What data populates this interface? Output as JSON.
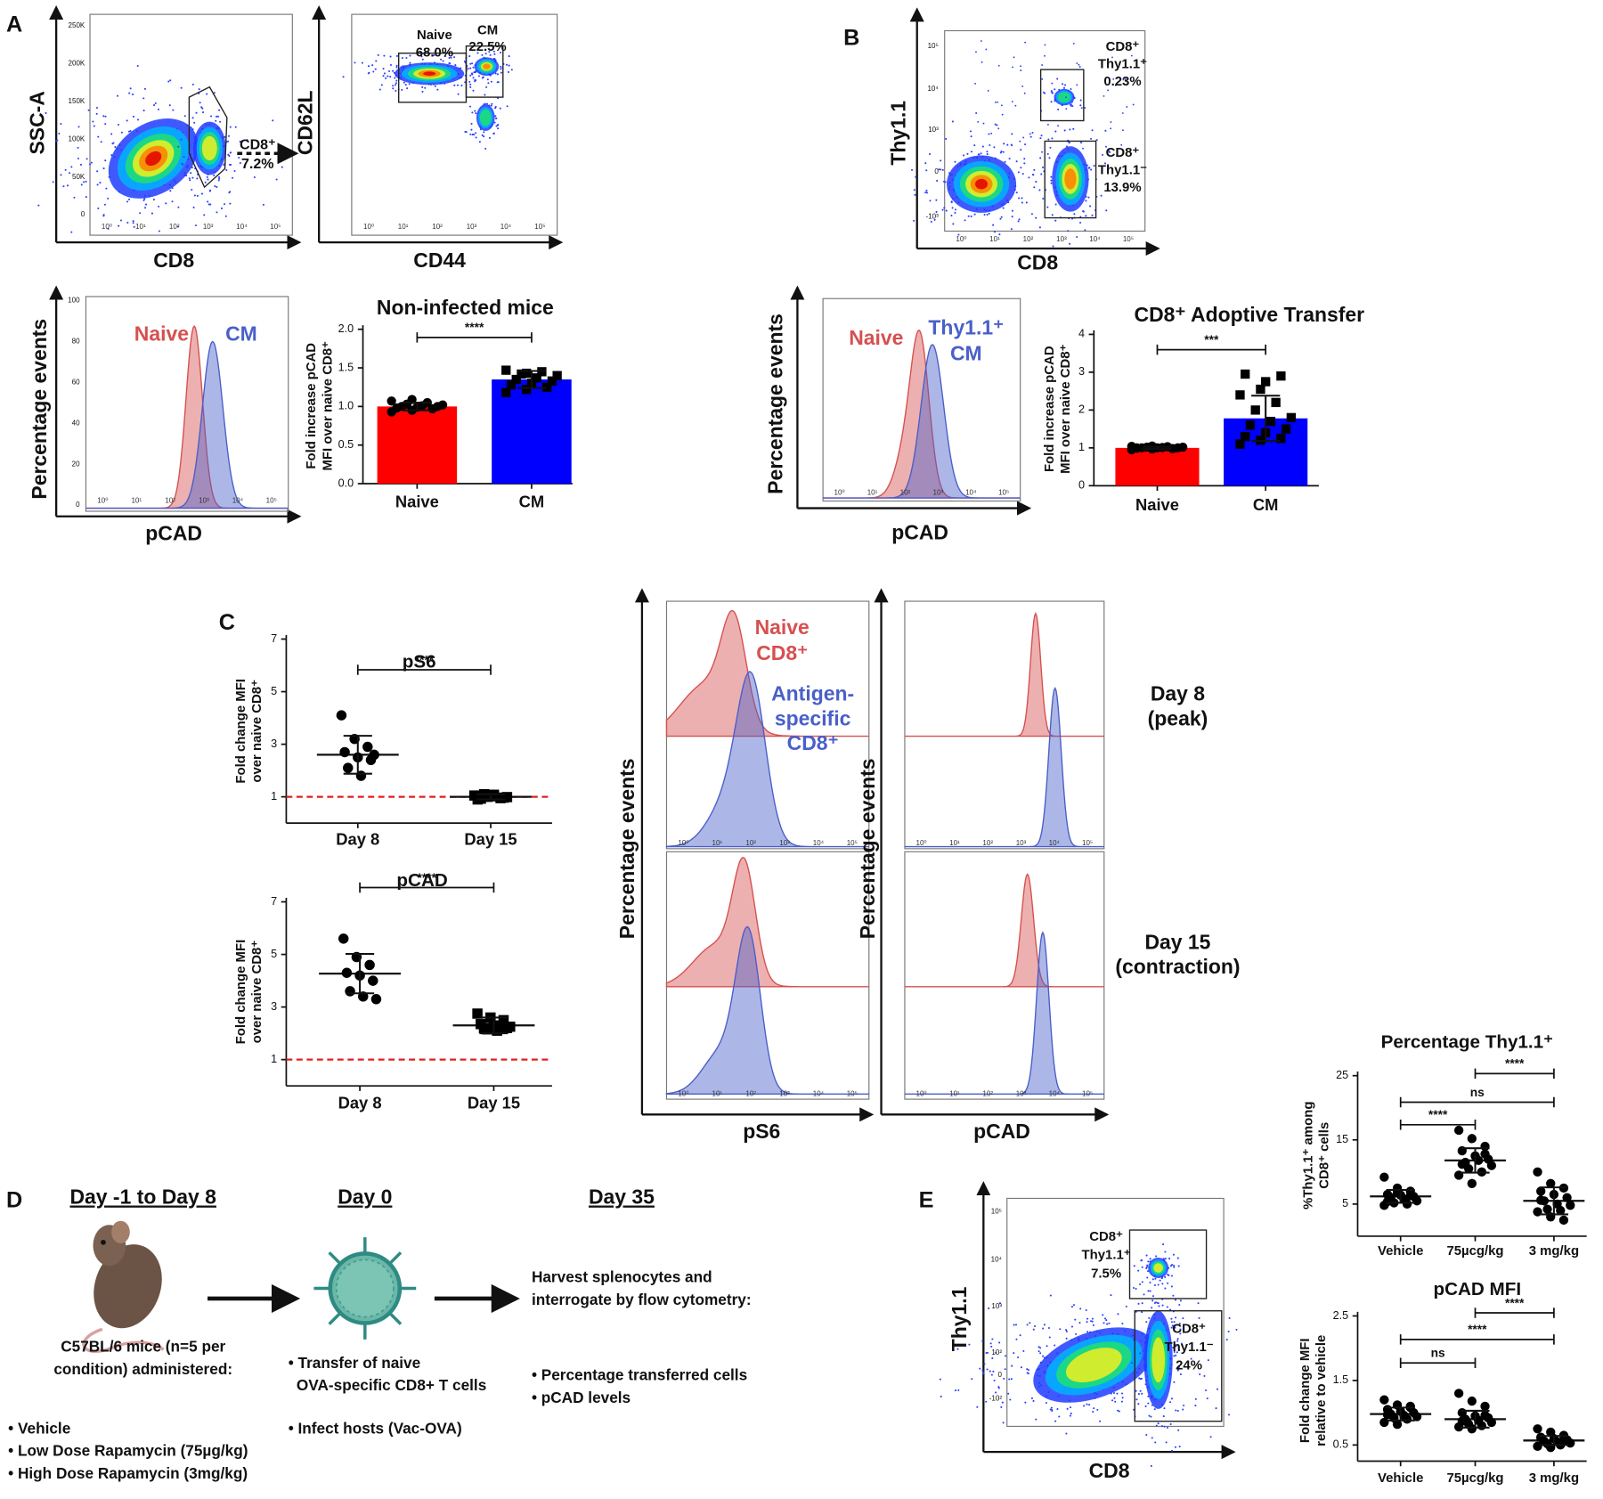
{
  "panel_labels": [
    "A",
    "B",
    "C",
    "D",
    "E"
  ],
  "log_ticks": [
    "10⁰",
    "10¹",
    "10²",
    "10³",
    "10⁴",
    "10⁵"
  ],
  "panel_a": {
    "ssc_plot": {
      "y_label": "SSC-A",
      "x_label": "CD8",
      "y_ticks": [
        "250K",
        "200K",
        "150K",
        "100K",
        "50K",
        "0"
      ],
      "gate": [
        "CD8⁺",
        "7.2%"
      ]
    },
    "cd62l_plot": {
      "y_label": "CD62L",
      "x_label": "CD44",
      "gates": [
        [
          "Naive",
          "68.0%"
        ],
        [
          "CM",
          "22.5%"
        ]
      ]
    },
    "histogram": {
      "y_label": "Percentage events",
      "x_label": "pCAD",
      "y_ticks": [
        "100",
        "80",
        "60",
        "40",
        "20",
        "0"
      ],
      "legend": [
        "Naive",
        "CM"
      ]
    }
  },
  "panel_b": {
    "thy_plot": {
      "y_label": "Thy1.1",
      "x_label": "CD8",
      "y_ticks": [
        "10⁵",
        "10⁴",
        "10³",
        "0",
        "-10³"
      ],
      "gates": [
        [
          "CD8⁺",
          "Thy1.1⁺",
          "0.23%"
        ],
        [
          "CD8⁺",
          "Thy1.1⁻",
          "13.9%"
        ]
      ]
    },
    "histogram": {
      "y_label": "Percentage events",
      "x_label": "pCAD",
      "legend": [
        "Naive",
        "Thy1.1⁺",
        "CM"
      ]
    }
  },
  "panel_c": {
    "histograms": {
      "y_label": "Percentage events",
      "x_labels": [
        "pS6",
        "pCAD"
      ],
      "legend": [
        "Naive",
        "CD8⁺",
        "Antigen-",
        "specific",
        "CD8⁺"
      ],
      "rows": [
        [
          "Day 8",
          "(peak)"
        ],
        [
          "Day 15",
          "(contraction)"
        ]
      ]
    }
  },
  "panel_d": {
    "steps": [
      {
        "heading": "Day -1 to Day 8",
        "lines": [
          "C57BL/6 mice (n=5 per",
          "condition) administered:"
        ],
        "bullets": [
          "• Vehicle",
          "• Low Dose Rapamycin (75µg/kg)",
          "• High Dose Rapamycin (3mg/kg)"
        ]
      },
      {
        "heading": "Day 0",
        "lines": [
          "• Transfer of naive",
          "OVA-specific CD8+ T cells"
        ],
        "bullets": [
          "• Infect hosts (Vac-OVA)"
        ]
      },
      {
        "heading": "Day 35",
        "lines": [
          "Harvest splenocytes and",
          "interrogate by flow cytometry:"
        ],
        "bullets": [
          "• Percentage transferred cells",
          "• pCAD levels"
        ]
      }
    ]
  },
  "panel_e": {
    "flow_plot": {
      "y_label": "Thy1.1",
      "x_label": "CD8",
      "y_ticks": [
        "10⁵",
        "10⁴",
        "10³",
        "10²",
        "0",
        "-10²"
      ],
      "gates": [
        [
          "CD8⁺",
          "Thy1.1⁺",
          "7.5%"
        ],
        [
          "CD8⁺",
          "Thy1.1⁻",
          "24%"
        ]
      ]
    }
  },
  "chart_data": [
    {
      "type": "bar",
      "title": "Non-infected mice",
      "ylabel": [
        "Fold increase pCAD",
        "MFI over naive CD8⁺"
      ],
      "categories": [
        "Naive",
        "CM"
      ],
      "colors": [
        "#ff0000",
        "#0000ff"
      ],
      "markers": [
        "circle",
        "square"
      ],
      "values": [
        1.0,
        1.35
      ],
      "errors": [
        0.05,
        0.11
      ],
      "points": [
        [
          0.93,
          0.95,
          0.97,
          0.98,
          0.99,
          1.0,
          1.0,
          1.01,
          1.02,
          1.03,
          1.05,
          1.07,
          1.09
        ],
        [
          1.18,
          1.22,
          1.25,
          1.28,
          1.3,
          1.33,
          1.35,
          1.37,
          1.4,
          1.42,
          1.45,
          1.47,
          1.43
        ]
      ],
      "ylim": [
        0,
        2
      ],
      "yticks": [
        {
          "value": 0,
          "label": "0.0"
        },
        0.5,
        {
          "value": 1,
          "label": "1.0"
        },
        1.5,
        {
          "value": 2,
          "label": "2.0"
        }
      ],
      "comparisons": [
        {
          "pair": [
            0,
            1
          ],
          "label": "****"
        }
      ]
    },
    {
      "type": "bar",
      "title": "CD8⁺ Adoptive Transfer",
      "ylabel": [
        "Fold increase pCAD",
        "MFI over naive CD8⁺"
      ],
      "categories": [
        "Naive",
        "CM"
      ],
      "colors": [
        "#ff0000",
        "#0000ff"
      ],
      "markers": [
        "circle",
        "square"
      ],
      "values": [
        1.0,
        1.78
      ],
      "errors": [
        0.03,
        0.6
      ],
      "points": [
        [
          0.95,
          0.97,
          0.98,
          0.99,
          1.0,
          1.0,
          1.0,
          1.01,
          1.02,
          1.02,
          1.03,
          1.04,
          1.05,
          0.98,
          1.0
        ],
        [
          1.1,
          1.2,
          1.25,
          1.3,
          1.4,
          1.5,
          1.6,
          1.7,
          1.8,
          2.0,
          2.2,
          2.4,
          2.55,
          2.9,
          2.95,
          2.75
        ]
      ],
      "ylim": [
        0,
        4
      ],
      "yticks": [
        0,
        1,
        2,
        3,
        4
      ],
      "comparisons": [
        {
          "pair": [
            0,
            1
          ],
          "label": "***"
        }
      ]
    },
    {
      "type": "scatter",
      "title": "pS6",
      "ylabel": [
        "Fold change MFI",
        "over naive CD8⁺"
      ],
      "categories": [
        "Day 8",
        "Day 15"
      ],
      "markers": [
        "circle",
        "square"
      ],
      "point_color": "#000000",
      "values": [
        2.6,
        1.0
      ],
      "errors": [
        0.72,
        0.1
      ],
      "points": [
        [
          4.1,
          3.2,
          2.9,
          2.7,
          2.5,
          2.4,
          2.1,
          1.8,
          2.6
        ],
        [
          1.05,
          1.0,
          0.95,
          0.9,
          1.02,
          0.97,
          0.93,
          1.08,
          0.99,
          1.1
        ]
      ],
      "ylim": [
        0,
        7
      ],
      "yticks": [
        1,
        3,
        5,
        7
      ],
      "reference_line": 1,
      "reference_color": "#e02020",
      "comparisons": [
        {
          "pair": [
            0,
            1
          ],
          "label": "****"
        }
      ]
    },
    {
      "type": "scatter",
      "title": "pCAD",
      "ylabel": [
        "Fold change MFI",
        "over naive CD8⁺"
      ],
      "categories": [
        "Day 8",
        "Day 15"
      ],
      "markers": [
        "circle",
        "square"
      ],
      "point_color": "#000000",
      "values": [
        4.27,
        2.3
      ],
      "errors": [
        0.75,
        0.3
      ],
      "points": [
        [
          5.6,
          4.9,
          4.6,
          4.3,
          4.2,
          4.0,
          3.6,
          3.4,
          3.3
        ],
        [
          2.75,
          2.6,
          2.5,
          2.35,
          2.3,
          2.2,
          2.2,
          2.1,
          2.25,
          2.15
        ]
      ],
      "ylim": [
        0,
        7
      ],
      "yticks": [
        1,
        3,
        5,
        7
      ],
      "reference_line": 1,
      "reference_color": "#e02020",
      "comparisons": [
        {
          "pair": [
            0,
            1
          ],
          "label": "****"
        }
      ]
    },
    {
      "type": "scatter",
      "title": "Percentage Thy1.1⁺",
      "ylabel": [
        "%Thy1.1⁺ among",
        "CD8⁺ cells"
      ],
      "categories": [
        "Vehicle",
        "75µcg/kg",
        "3 mg/kg"
      ],
      "markers": [
        "circle",
        "circle",
        "circle"
      ],
      "point_color": "#000000",
      "values": [
        6.2,
        11.8,
        5.5
      ],
      "errors": [
        1.0,
        1.9,
        2.1
      ],
      "points": [
        [
          9.2,
          7.5,
          7,
          6.5,
          6.4,
          6.2,
          6,
          5.8,
          5.5,
          5.2,
          5,
          4.8,
          6.8,
          6.3,
          5.4
        ],
        [
          16.5,
          15.2,
          14,
          13.3,
          12.5,
          12,
          11.5,
          11.8,
          11,
          10.5,
          10,
          9.5,
          8.2,
          12.8,
          11.2
        ],
        [
          10,
          8.2,
          7.5,
          7,
          6.5,
          6,
          5.5,
          5,
          4.8,
          4.2,
          4,
          3.8,
          3,
          2.5,
          5.6
        ]
      ],
      "ylim": [
        0,
        25
      ],
      "yticks": [
        5,
        15,
        25
      ],
      "comparisons": [
        {
          "pair": [
            1,
            2
          ],
          "label": "****"
        },
        {
          "pair": [
            0,
            2
          ],
          "label": "ns"
        },
        {
          "pair": [
            0,
            1
          ],
          "label": "****"
        }
      ]
    },
    {
      "type": "scatter",
      "title": "pCAD MFI",
      "ylabel": [
        "Fold change MFI",
        "relative to vehicle"
      ],
      "categories": [
        "Vehicle",
        "75µcg/kg",
        "3 mg/kg"
      ],
      "markers": [
        "circle",
        "circle",
        "circle"
      ],
      "point_color": "#000000",
      "values": [
        0.98,
        0.9,
        0.57
      ],
      "errors": [
        0.1,
        0.13,
        0.07
      ],
      "points": [
        [
          1.2,
          1.12,
          1.1,
          1.05,
          1.02,
          1,
          0.98,
          0.96,
          0.94,
          0.92,
          0.9,
          0.85,
          0.82,
          1.08,
          0.97
        ],
        [
          1.3,
          1.18,
          1.1,
          1.0,
          0.95,
          0.92,
          0.9,
          0.88,
          0.85,
          0.82,
          0.8,
          0.78,
          0.75,
          0.96,
          0.87
        ],
        [
          0.75,
          0.7,
          0.65,
          0.62,
          0.6,
          0.58,
          0.56,
          0.55,
          0.53,
          0.52,
          0.5,
          0.48,
          0.46,
          0.57,
          0.61
        ]
      ],
      "ylim": [
        0.25,
        2.5
      ],
      "yticks": [
        0.5,
        1.5,
        2.5
      ],
      "comparisons": [
        {
          "pair": [
            1,
            2
          ],
          "label": "****"
        },
        {
          "pair": [
            0,
            2
          ],
          "label": "****"
        },
        {
          "pair": [
            0,
            1
          ],
          "label": "ns"
        }
      ]
    }
  ]
}
